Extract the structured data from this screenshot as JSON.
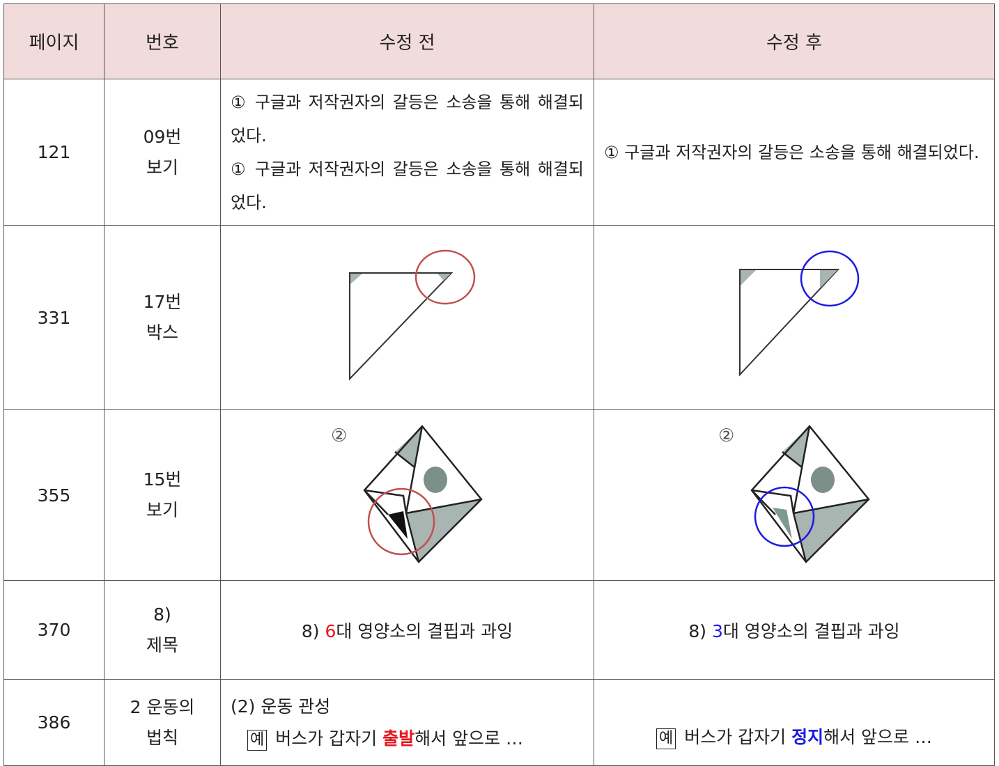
{
  "table": {
    "header": [
      "페이지",
      "번호",
      "수정 전",
      "수정 후"
    ],
    "rows": [
      {
        "page": "121",
        "number": [
          "09번",
          "보기"
        ],
        "before": [
          "① 구글과 저작권자의 갈등은 소송을 통해 해결되었다.",
          "① 구글과 저작권자의 갈등은 소송을 통해 해결되었다."
        ],
        "after": [
          "① 구글과 저작권자의 갈등은 소송을 통해 해결되었다."
        ]
      },
      {
        "page": "331",
        "number": [
          "17번",
          "박스"
        ]
      },
      {
        "page": "355",
        "number": [
          "15번",
          "보기"
        ],
        "before_label": "②",
        "after_label": "②"
      },
      {
        "page": "370",
        "number": [
          "8)",
          "제목"
        ],
        "before": [
          "8)",
          "6",
          "대 영양소의 결핍과 과잉"
        ],
        "after": [
          "8)",
          "3",
          "대 영양소의 결핍과 과잉"
        ]
      },
      {
        "page": "386",
        "number": [
          "2 운동의",
          "법칙"
        ],
        "before": {
          "heading": "(2) 운동 관성",
          "tag": "예",
          "parts": [
            "버스가 갑자기",
            "출발",
            "해서 앞으로 …"
          ]
        },
        "after": {
          "tag": "예",
          "parts": [
            "버스가 갑자기",
            "정지",
            "해서 앞으로 …"
          ]
        }
      }
    ]
  }
}
